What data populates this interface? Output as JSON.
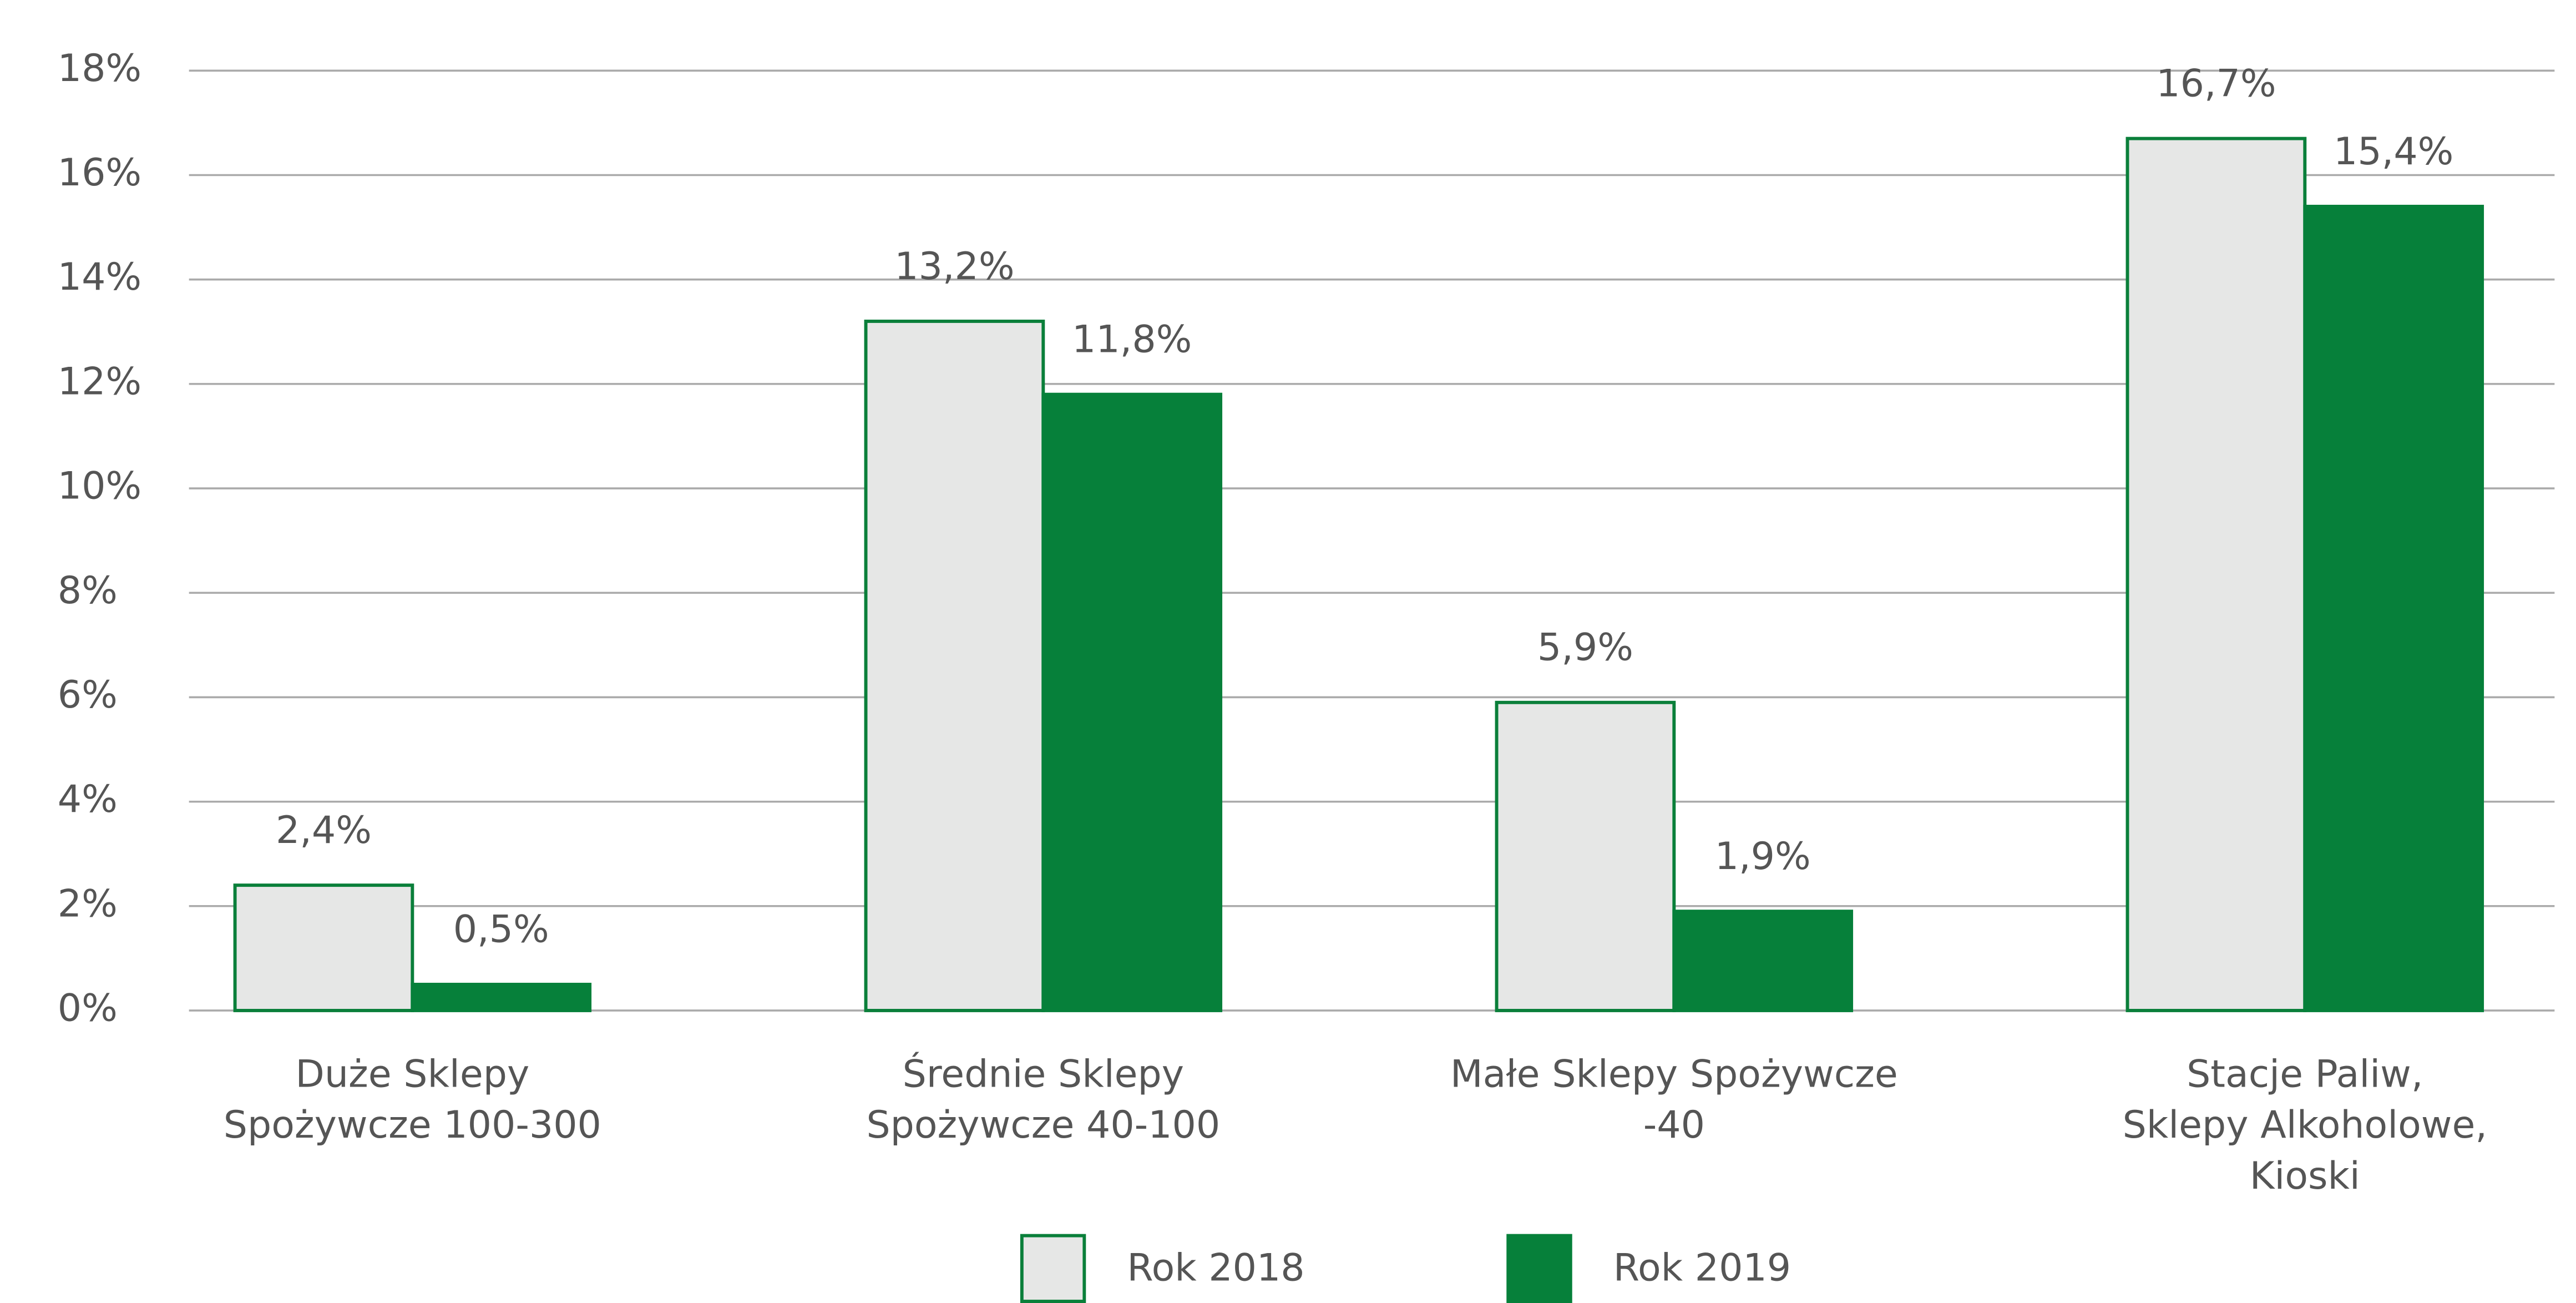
{
  "chart_data": {
    "type": "bar",
    "categories": [
      "Duże Sklepy\nSpożywcze 100-300",
      "Średnie Sklepy\nSpożywcze 40-100",
      "Małe Sklepy Spożywcze\n-40",
      "Stacje Paliw,\nSklepy Alkoholowe,\nKioski"
    ],
    "series": [
      {
        "name": "Rok 2018",
        "color": "#e6e7e6",
        "edge": "#0a7f3a",
        "values": [
          2.4,
          13.2,
          5.9,
          16.7
        ],
        "value_labels": [
          "2,4%",
          "13,2%",
          "5,9%",
          "16,7%"
        ]
      },
      {
        "name": "Rok 2019",
        "color": "#06803a",
        "edge": "#06803a",
        "values": [
          0.5,
          11.8,
          1.9,
          15.4
        ],
        "value_labels": [
          "0,5%",
          "11,8%",
          "1,9%",
          "15,4%"
        ]
      }
    ],
    "ylim": [
      0,
      18
    ],
    "yticks": [
      {
        "value": 0,
        "label": "0%"
      },
      {
        "value": 2,
        "label": "2%"
      },
      {
        "value": 4,
        "label": "4%"
      },
      {
        "value": 6,
        "label": "6%"
      },
      {
        "value": 8,
        "label": "8%"
      },
      {
        "value": 10,
        "label": "10%"
      },
      {
        "value": 12,
        "label": "12%"
      },
      {
        "value": 14,
        "label": "14%"
      },
      {
        "value": 16,
        "label": "16%"
      },
      {
        "value": 18,
        "label": "18%"
      }
    ],
    "grid": true,
    "legend": "bottom"
  }
}
